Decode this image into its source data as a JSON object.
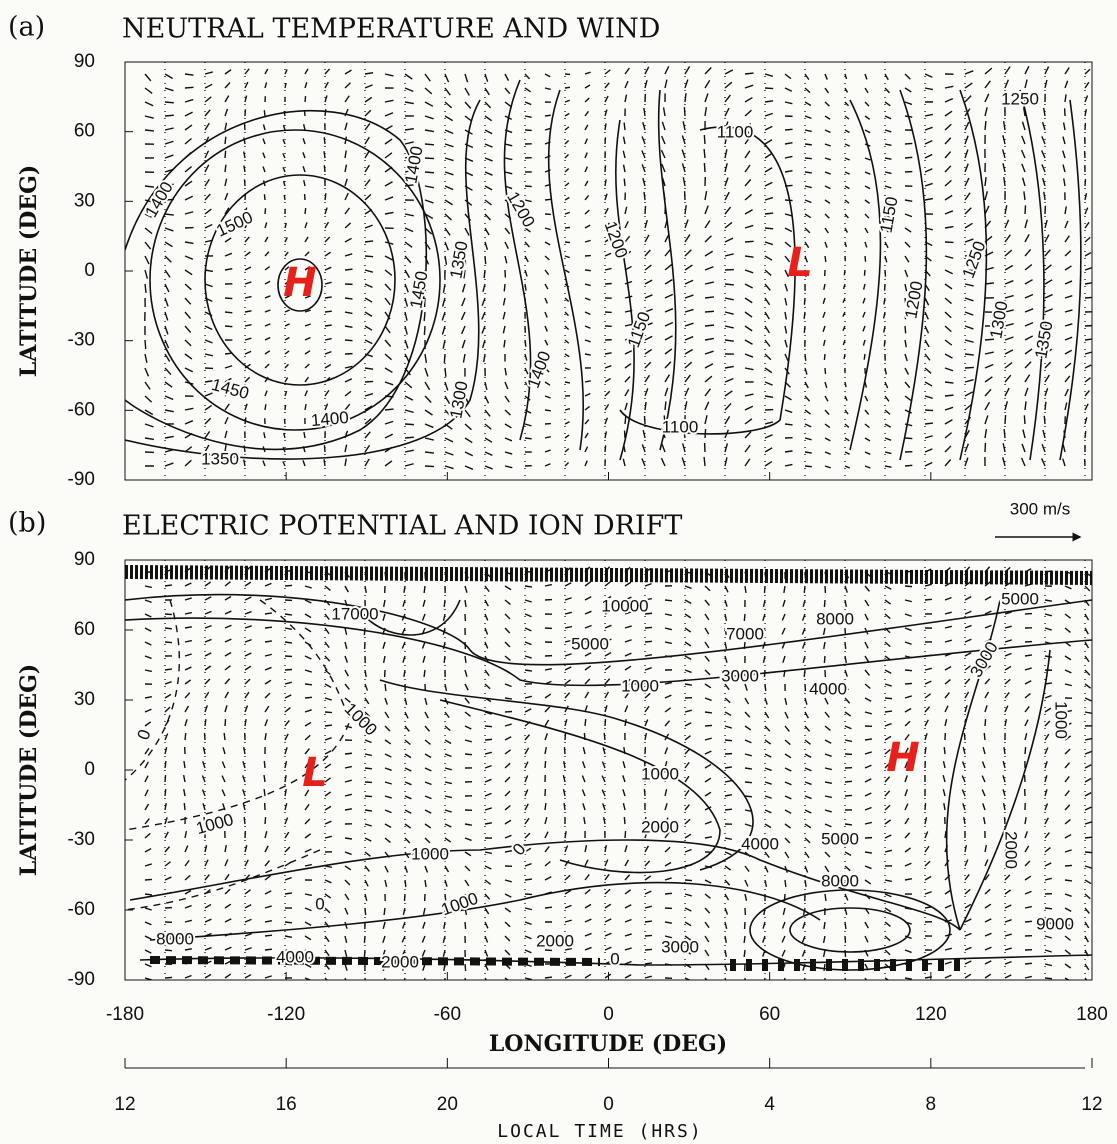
{
  "chart_data": [
    {
      "type": "contour",
      "panel_label": "(a)",
      "title": "NEUTRAL TEMPERATURE AND WIND",
      "ylabel": "LATITUDE (DEG)",
      "xlim": [
        -180,
        180
      ],
      "ylim": [
        -90,
        90
      ],
      "yticks": [
        90,
        60,
        30,
        0,
        -30,
        -60,
        -90
      ],
      "contour_labels": [
        1400,
        1500,
        1450,
        1400,
        1350,
        1450,
        1350,
        1400,
        1300,
        1200,
        1200,
        1150,
        1400,
        1100,
        1100,
        1150,
        1200,
        1250,
        1300,
        1350,
        1250
      ],
      "markers": [
        "H",
        "L"
      ],
      "marker_color": "#e8201c",
      "scale_label": "300 m/s"
    },
    {
      "type": "contour",
      "panel_label": "(b)",
      "title": "ELECTRIC POTENTIAL AND ION DRIFT",
      "ylabel": "LATITUDE (DEG)",
      "xlabel": "LONGITUDE (DEG)",
      "xlim": [
        -180,
        180
      ],
      "ylim": [
        -90,
        90
      ],
      "yticks": [
        90,
        60,
        30,
        0,
        -30,
        -60,
        -90
      ],
      "xticks": [
        -180,
        -120,
        -60,
        0,
        60,
        120,
        180
      ],
      "contour_labels": [
        17000,
        10000,
        7000,
        8000,
        5000,
        5000,
        1000,
        3000,
        4000,
        3000,
        1000,
        0,
        1000,
        1000,
        2000,
        1000,
        0,
        4000,
        5000,
        8000,
        0,
        1000,
        2000,
        3000,
        0,
        2000,
        4000,
        8000,
        9000,
        2000,
        1000
      ],
      "markers": [
        "L",
        "H"
      ],
      "marker_color": "#e8201c",
      "x2label": "LOCAL TIME (HRS)",
      "x2ticks": [
        {
          "value": -180,
          "label": "12"
        },
        {
          "value": -120,
          "label": "16"
        },
        {
          "value": -60,
          "label": "20"
        },
        {
          "value": 0,
          "label": "0"
        },
        {
          "value": 60,
          "label": "4"
        },
        {
          "value": 120,
          "label": "8"
        },
        {
          "value": 180,
          "label": "12"
        }
      ]
    }
  ]
}
